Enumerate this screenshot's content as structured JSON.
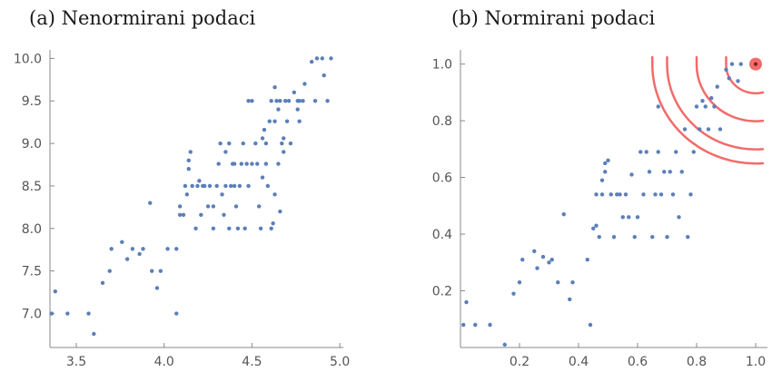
{
  "chart_data": [
    {
      "type": "scatter",
      "title": "(a) Nenormirani podaci",
      "xlabel": "",
      "ylabel": "",
      "xlim": [
        3.35,
        5.02
      ],
      "ylim": [
        6.6,
        10.1
      ],
      "xticks": [
        "3.5",
        "4.0",
        "4.5",
        "5.0"
      ],
      "yticks": [
        "7.0",
        "7.5",
        "8.0",
        "8.5",
        "9.0",
        "9.5",
        "10.0"
      ],
      "grid": false,
      "colors": {
        "points": "#5b7fb8"
      },
      "points": [
        [
          3.36,
          7.0
        ],
        [
          3.38,
          7.26
        ],
        [
          3.45,
          7.0
        ],
        [
          3.57,
          7.0
        ],
        [
          3.6,
          6.76
        ],
        [
          3.65,
          7.36
        ],
        [
          3.69,
          7.5
        ],
        [
          3.7,
          7.76
        ],
        [
          3.76,
          7.84
        ],
        [
          3.79,
          7.64
        ],
        [
          3.82,
          7.76
        ],
        [
          3.86,
          7.7
        ],
        [
          3.88,
          7.76
        ],
        [
          3.92,
          8.3
        ],
        [
          3.93,
          7.5
        ],
        [
          3.96,
          7.3
        ],
        [
          3.98,
          7.5
        ],
        [
          4.02,
          7.76
        ],
        [
          4.07,
          7.0
        ],
        [
          4.07,
          7.76
        ],
        [
          4.09,
          8.16
        ],
        [
          4.09,
          8.26
        ],
        [
          4.11,
          8.16
        ],
        [
          4.12,
          8.5
        ],
        [
          4.13,
          8.4
        ],
        [
          4.14,
          8.7
        ],
        [
          4.14,
          8.8
        ],
        [
          4.15,
          8.9
        ],
        [
          4.16,
          8.5
        ],
        [
          4.18,
          8.0
        ],
        [
          4.19,
          8.5
        ],
        [
          4.2,
          8.56
        ],
        [
          4.21,
          8.16
        ],
        [
          4.22,
          8.5
        ],
        [
          4.23,
          8.5
        ],
        [
          4.25,
          8.26
        ],
        [
          4.26,
          8.5
        ],
        [
          4.28,
          8.0
        ],
        [
          4.28,
          8.26
        ],
        [
          4.3,
          8.5
        ],
        [
          4.31,
          8.76
        ],
        [
          4.32,
          9.0
        ],
        [
          4.33,
          8.4
        ],
        [
          4.34,
          8.16
        ],
        [
          4.35,
          8.5
        ],
        [
          4.35,
          8.9
        ],
        [
          4.37,
          8.0
        ],
        [
          4.37,
          9.0
        ],
        [
          4.38,
          8.5
        ],
        [
          4.39,
          8.76
        ],
        [
          4.4,
          8.5
        ],
        [
          4.4,
          8.76
        ],
        [
          4.41,
          8.26
        ],
        [
          4.42,
          8.0
        ],
        [
          4.43,
          8.5
        ],
        [
          4.44,
          8.76
        ],
        [
          4.45,
          9.0
        ],
        [
          4.46,
          8.0
        ],
        [
          4.47,
          8.76
        ],
        [
          4.48,
          8.5
        ],
        [
          4.48,
          9.5
        ],
        [
          4.5,
          8.76
        ],
        [
          4.5,
          9.5
        ],
        [
          4.52,
          9.0
        ],
        [
          4.53,
          8.76
        ],
        [
          4.54,
          8.26
        ],
        [
          4.55,
          8.0
        ],
        [
          4.56,
          9.06
        ],
        [
          4.56,
          8.6
        ],
        [
          4.57,
          9.16
        ],
        [
          4.58,
          9.0
        ],
        [
          4.58,
          8.76
        ],
        [
          4.59,
          8.5
        ],
        [
          4.6,
          9.26
        ],
        [
          4.61,
          8.0
        ],
        [
          4.61,
          9.5
        ],
        [
          4.62,
          8.06
        ],
        [
          4.63,
          9.66
        ],
        [
          4.63,
          9.26
        ],
        [
          4.63,
          8.4
        ],
        [
          4.64,
          9.5
        ],
        [
          4.65,
          9.4
        ],
        [
          4.65,
          8.76
        ],
        [
          4.66,
          9.5
        ],
        [
          4.66,
          8.2
        ],
        [
          4.67,
          9.0
        ],
        [
          4.68,
          9.06
        ],
        [
          4.68,
          8.9
        ],
        [
          4.69,
          9.5
        ],
        [
          4.7,
          9.26
        ],
        [
          4.71,
          9.5
        ],
        [
          4.72,
          9.0
        ],
        [
          4.74,
          9.6
        ],
        [
          4.76,
          9.5
        ],
        [
          4.76,
          9.4
        ],
        [
          4.77,
          9.26
        ],
        [
          4.77,
          9.5
        ],
        [
          4.79,
          9.5
        ],
        [
          4.8,
          9.7
        ],
        [
          4.84,
          9.96
        ],
        [
          4.86,
          9.5
        ],
        [
          4.87,
          10.0
        ],
        [
          4.9,
          10.0
        ],
        [
          4.91,
          9.8
        ],
        [
          4.93,
          9.5
        ],
        [
          4.95,
          10.0
        ]
      ]
    },
    {
      "type": "scatter",
      "title": "(b) Normirani podaci",
      "xlabel": "",
      "ylabel": "",
      "xlim": [
        0.0,
        1.04
      ],
      "ylim": [
        0.0,
        1.05
      ],
      "xticks": [
        "0.2",
        "0.4",
        "0.6",
        "0.8",
        "1.0"
      ],
      "yticks": [
        "0.2",
        "0.4",
        "0.6",
        "0.8",
        "1.0"
      ],
      "grid": false,
      "colors": {
        "points": "#5b7fb8",
        "highlight": "#f26b6b",
        "arcs": "#f26b6b"
      },
      "highlight_point": [
        1.0,
        1.0
      ],
      "arc_radii": [
        0.1,
        0.2,
        0.3,
        0.35
      ],
      "points": [
        [
          0.01,
          0.08
        ],
        [
          0.02,
          0.16
        ],
        [
          0.05,
          0.08
        ],
        [
          0.1,
          0.08
        ],
        [
          0.15,
          0.01
        ],
        [
          0.18,
          0.19
        ],
        [
          0.2,
          0.23
        ],
        [
          0.21,
          0.31
        ],
        [
          0.25,
          0.34
        ],
        [
          0.26,
          0.28
        ],
        [
          0.28,
          0.32
        ],
        [
          0.3,
          0.3
        ],
        [
          0.31,
          0.31
        ],
        [
          0.35,
          0.47
        ],
        [
          0.33,
          0.23
        ],
        [
          0.37,
          0.17
        ],
        [
          0.38,
          0.23
        ],
        [
          0.43,
          0.31
        ],
        [
          0.44,
          0.08
        ],
        [
          0.45,
          0.42
        ],
        [
          0.46,
          0.43
        ],
        [
          0.46,
          0.54
        ],
        [
          0.47,
          0.39
        ],
        [
          0.48,
          0.54
        ],
        [
          0.48,
          0.59
        ],
        [
          0.49,
          0.62
        ],
        [
          0.49,
          0.65
        ],
        [
          0.5,
          0.66
        ],
        [
          0.51,
          0.54
        ],
        [
          0.52,
          0.39
        ],
        [
          0.53,
          0.54
        ],
        [
          0.54,
          0.54
        ],
        [
          0.55,
          0.46
        ],
        [
          0.56,
          0.54
        ],
        [
          0.57,
          0.46
        ],
        [
          0.58,
          0.61
        ],
        [
          0.59,
          0.39
        ],
        [
          0.6,
          0.46
        ],
        [
          0.61,
          0.69
        ],
        [
          0.62,
          0.54
        ],
        [
          0.63,
          0.69
        ],
        [
          0.64,
          0.62
        ],
        [
          0.65,
          0.39
        ],
        [
          0.66,
          0.54
        ],
        [
          0.67,
          0.69
        ],
        [
          0.67,
          0.85
        ],
        [
          0.68,
          0.54
        ],
        [
          0.69,
          0.62
        ],
        [
          0.7,
          0.39
        ],
        [
          0.71,
          0.62
        ],
        [
          0.72,
          0.54
        ],
        [
          0.73,
          0.69
        ],
        [
          0.74,
          0.46
        ],
        [
          0.75,
          0.62
        ],
        [
          0.76,
          0.77
        ],
        [
          0.77,
          0.39
        ],
        [
          0.78,
          0.54
        ],
        [
          0.79,
          0.69
        ],
        [
          0.8,
          0.85
        ],
        [
          0.81,
          0.77
        ],
        [
          0.82,
          0.87
        ],
        [
          0.83,
          0.85
        ],
        [
          0.84,
          0.77
        ],
        [
          0.85,
          0.88
        ],
        [
          0.86,
          0.85
        ],
        [
          0.87,
          0.92
        ],
        [
          0.88,
          0.77
        ],
        [
          0.9,
          0.98
        ],
        [
          0.91,
          0.95
        ],
        [
          0.92,
          1.0
        ],
        [
          0.94,
          0.94
        ],
        [
          0.95,
          1.0
        ]
      ]
    }
  ]
}
